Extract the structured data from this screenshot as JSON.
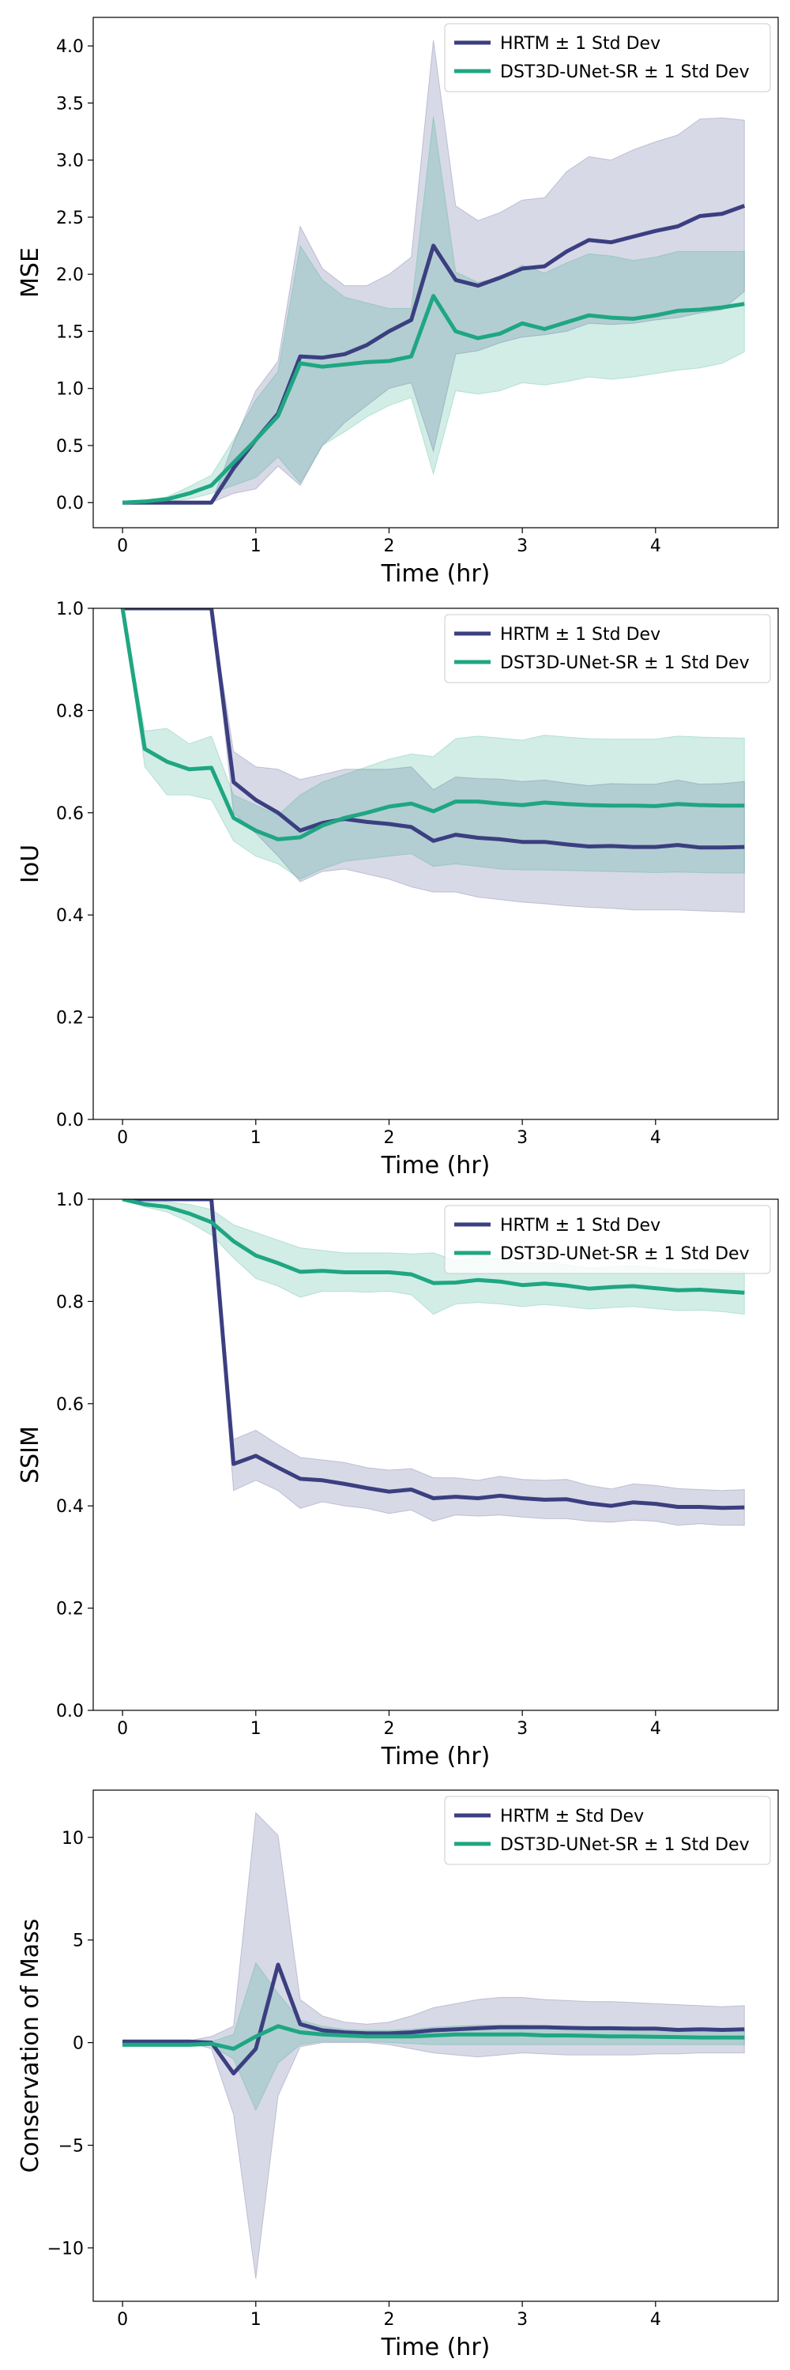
{
  "colors": {
    "hrtm": "#3b3f80",
    "dst": "#1fa682",
    "axis": "#000000"
  },
  "chart_data": [
    {
      "type": "line",
      "xlabel": "Time (hr)",
      "ylabel": "MSE",
      "xlim": [
        -0.22,
        4.92
      ],
      "ylim": [
        -0.22,
        4.25
      ],
      "xticks": [
        0,
        1,
        2,
        3,
        4
      ],
      "xtick_labels": [
        "0",
        "1",
        "2",
        "3",
        "4"
      ],
      "yticks": [
        0.0,
        0.5,
        1.0,
        1.5,
        2.0,
        2.5,
        3.0,
        3.5,
        4.0
      ],
      "ytick_labels": [
        "0.0",
        "0.5",
        "1.0",
        "1.5",
        "2.0",
        "2.5",
        "3.0",
        "3.5",
        "4.0"
      ],
      "legend_position": "top-right",
      "x": [
        0,
        0.167,
        0.333,
        0.5,
        0.667,
        0.833,
        1.0,
        1.167,
        1.333,
        1.5,
        1.667,
        1.833,
        2.0,
        2.167,
        2.333,
        2.5,
        2.667,
        2.833,
        3.0,
        3.167,
        3.333,
        3.5,
        3.667,
        3.833,
        4.0,
        4.167,
        4.333,
        4.5,
        4.667
      ],
      "series": [
        {
          "name": "HRTM ± 1 Std Dev",
          "color_key": "hrtm",
          "mean": [
            0,
            0,
            0,
            0,
            0,
            0.3,
            0.55,
            0.78,
            1.28,
            1.27,
            1.3,
            1.38,
            1.5,
            1.6,
            2.25,
            1.95,
            1.9,
            1.97,
            2.05,
            2.07,
            2.2,
            2.3,
            2.28,
            2.33,
            2.38,
            2.42,
            2.51,
            2.53,
            2.6
          ],
          "lower": [
            0,
            0,
            0,
            0,
            0,
            0.08,
            0.12,
            0.32,
            0.15,
            0.5,
            0.7,
            0.85,
            1.0,
            1.05,
            0.45,
            1.3,
            1.33,
            1.4,
            1.45,
            1.47,
            1.5,
            1.57,
            1.56,
            1.57,
            1.6,
            1.62,
            1.66,
            1.69,
            1.85
          ],
          "upper": [
            0,
            0,
            0,
            0,
            0,
            0.52,
            0.98,
            1.24,
            2.42,
            2.05,
            1.9,
            1.9,
            2.0,
            2.15,
            4.05,
            2.6,
            2.47,
            2.54,
            2.65,
            2.67,
            2.9,
            3.03,
            3.0,
            3.09,
            3.16,
            3.22,
            3.36,
            3.37,
            3.35
          ]
        },
        {
          "name": "DST3D-UNet-SR ± 1 Std Dev",
          "color_key": "dst",
          "mean": [
            0,
            0.01,
            0.03,
            0.08,
            0.15,
            0.35,
            0.55,
            0.76,
            1.22,
            1.19,
            1.21,
            1.23,
            1.24,
            1.28,
            1.81,
            1.5,
            1.44,
            1.48,
            1.57,
            1.52,
            1.58,
            1.64,
            1.62,
            1.61,
            1.64,
            1.68,
            1.69,
            1.71,
            1.74
          ],
          "lower": [
            0,
            0.005,
            0.01,
            0.03,
            0.08,
            0.15,
            0.22,
            0.4,
            0.17,
            0.5,
            0.62,
            0.75,
            0.85,
            0.92,
            0.25,
            0.98,
            0.95,
            0.98,
            1.05,
            1.03,
            1.06,
            1.1,
            1.08,
            1.1,
            1.13,
            1.16,
            1.18,
            1.22,
            1.32
          ],
          "upper": [
            0,
            0.02,
            0.05,
            0.14,
            0.24,
            0.55,
            0.9,
            1.15,
            2.25,
            1.95,
            1.8,
            1.75,
            1.7,
            1.7,
            3.38,
            2.02,
            1.93,
            1.97,
            2.08,
            2.01,
            2.1,
            2.18,
            2.16,
            2.12,
            2.15,
            2.2,
            2.2,
            2.2,
            2.2
          ]
        }
      ]
    },
    {
      "type": "line",
      "xlabel": "Time (hr)",
      "ylabel": "IoU",
      "xlim": [
        -0.22,
        4.92
      ],
      "ylim": [
        0.0,
        1.0
      ],
      "xticks": [
        0,
        1,
        2,
        3,
        4
      ],
      "xtick_labels": [
        "0",
        "1",
        "2",
        "3",
        "4"
      ],
      "yticks": [
        0.0,
        0.2,
        0.4,
        0.6,
        0.8,
        1.0
      ],
      "ytick_labels": [
        "0.0",
        "0.2",
        "0.4",
        "0.6",
        "0.8",
        "1.0"
      ],
      "legend_position": "top-right",
      "x": [
        0,
        0.167,
        0.333,
        0.5,
        0.667,
        0.833,
        1.0,
        1.167,
        1.333,
        1.5,
        1.667,
        1.833,
        2.0,
        2.167,
        2.333,
        2.5,
        2.667,
        2.833,
        3.0,
        3.167,
        3.333,
        3.5,
        3.667,
        3.833,
        4.0,
        4.167,
        4.333,
        4.5,
        4.667
      ],
      "series": [
        {
          "name": "HRTM ± 1 Std Dev",
          "color_key": "hrtm",
          "mean": [
            1.0,
            1.0,
            1.0,
            1.0,
            1.0,
            0.66,
            0.625,
            0.6,
            0.565,
            0.58,
            0.588,
            0.582,
            0.578,
            0.572,
            0.545,
            0.557,
            0.551,
            0.548,
            0.543,
            0.543,
            0.538,
            0.534,
            0.535,
            0.533,
            0.533,
            0.537,
            0.532,
            0.532,
            0.533
          ],
          "lower": [
            1.0,
            1.0,
            1.0,
            1.0,
            1.0,
            0.6,
            0.56,
            0.515,
            0.465,
            0.485,
            0.49,
            0.48,
            0.47,
            0.455,
            0.445,
            0.445,
            0.435,
            0.43,
            0.425,
            0.422,
            0.418,
            0.415,
            0.413,
            0.41,
            0.41,
            0.41,
            0.408,
            0.407,
            0.405
          ],
          "upper": [
            1.0,
            1.0,
            1.0,
            1.0,
            1.0,
            0.72,
            0.69,
            0.685,
            0.665,
            0.675,
            0.685,
            0.685,
            0.685,
            0.69,
            0.645,
            0.67,
            0.667,
            0.666,
            0.661,
            0.664,
            0.658,
            0.653,
            0.657,
            0.656,
            0.656,
            0.664,
            0.656,
            0.657,
            0.661
          ]
        },
        {
          "name": "DST3D-UNet-SR ± 1 Std Dev",
          "color_key": "dst",
          "mean": [
            1.0,
            0.725,
            0.7,
            0.685,
            0.688,
            0.59,
            0.565,
            0.548,
            0.552,
            0.575,
            0.59,
            0.6,
            0.612,
            0.618,
            0.603,
            0.622,
            0.622,
            0.618,
            0.615,
            0.62,
            0.617,
            0.615,
            0.614,
            0.614,
            0.613,
            0.617,
            0.615,
            0.614,
            0.614
          ],
          "lower": [
            1.0,
            0.69,
            0.635,
            0.635,
            0.625,
            0.545,
            0.515,
            0.5,
            0.47,
            0.49,
            0.505,
            0.51,
            0.515,
            0.52,
            0.495,
            0.5,
            0.495,
            0.49,
            0.488,
            0.488,
            0.487,
            0.486,
            0.485,
            0.484,
            0.483,
            0.484,
            0.483,
            0.482,
            0.482
          ],
          "upper": [
            1.0,
            0.76,
            0.765,
            0.735,
            0.75,
            0.635,
            0.615,
            0.595,
            0.635,
            0.66,
            0.675,
            0.69,
            0.705,
            0.715,
            0.71,
            0.745,
            0.75,
            0.746,
            0.742,
            0.752,
            0.748,
            0.745,
            0.744,
            0.744,
            0.744,
            0.75,
            0.748,
            0.747,
            0.746
          ]
        }
      ]
    },
    {
      "type": "line",
      "xlabel": "Time (hr)",
      "ylabel": "SSIM",
      "xlim": [
        -0.22,
        4.92
      ],
      "ylim": [
        0.0,
        1.0
      ],
      "xticks": [
        0,
        1,
        2,
        3,
        4
      ],
      "xtick_labels": [
        "0",
        "1",
        "2",
        "3",
        "4"
      ],
      "yticks": [
        0.0,
        0.2,
        0.4,
        0.6,
        0.8,
        1.0
      ],
      "ytick_labels": [
        "0.0",
        "0.2",
        "0.4",
        "0.6",
        "0.8",
        "1.0"
      ],
      "legend_position": "top-right",
      "x": [
        0,
        0.167,
        0.333,
        0.5,
        0.667,
        0.833,
        1.0,
        1.167,
        1.333,
        1.5,
        1.667,
        1.833,
        2.0,
        2.167,
        2.333,
        2.5,
        2.667,
        2.833,
        3.0,
        3.167,
        3.333,
        3.5,
        3.667,
        3.833,
        4.0,
        4.167,
        4.333,
        4.5,
        4.667
      ],
      "series": [
        {
          "name": "HRTM ± 1 Std Dev",
          "color_key": "hrtm",
          "mean": [
            1.0,
            1.0,
            1.0,
            1.0,
            1.0,
            0.482,
            0.498,
            0.475,
            0.453,
            0.45,
            0.443,
            0.435,
            0.428,
            0.432,
            0.415,
            0.418,
            0.415,
            0.42,
            0.415,
            0.412,
            0.413,
            0.405,
            0.4,
            0.407,
            0.404,
            0.398,
            0.398,
            0.396,
            0.397
          ],
          "lower": [
            1.0,
            1.0,
            1.0,
            1.0,
            1.0,
            0.43,
            0.45,
            0.43,
            0.395,
            0.408,
            0.4,
            0.395,
            0.385,
            0.392,
            0.37,
            0.382,
            0.38,
            0.382,
            0.378,
            0.375,
            0.375,
            0.37,
            0.368,
            0.372,
            0.37,
            0.362,
            0.365,
            0.362,
            0.362
          ],
          "upper": [
            1.0,
            1.0,
            1.0,
            1.0,
            1.0,
            0.53,
            0.548,
            0.52,
            0.495,
            0.49,
            0.485,
            0.475,
            0.47,
            0.473,
            0.455,
            0.455,
            0.45,
            0.458,
            0.452,
            0.45,
            0.452,
            0.44,
            0.433,
            0.443,
            0.44,
            0.434,
            0.432,
            0.43,
            0.432
          ]
        },
        {
          "name": "DST3D-UNet-SR ± 1 Std Dev",
          "color_key": "dst",
          "mean": [
            1.0,
            0.99,
            0.985,
            0.972,
            0.955,
            0.918,
            0.89,
            0.875,
            0.858,
            0.86,
            0.857,
            0.857,
            0.857,
            0.853,
            0.836,
            0.837,
            0.842,
            0.839,
            0.832,
            0.835,
            0.831,
            0.825,
            0.828,
            0.83,
            0.826,
            0.822,
            0.823,
            0.82,
            0.817
          ],
          "lower": [
            1.0,
            0.985,
            0.975,
            0.955,
            0.93,
            0.885,
            0.845,
            0.83,
            0.808,
            0.82,
            0.82,
            0.818,
            0.82,
            0.813,
            0.775,
            0.795,
            0.798,
            0.795,
            0.79,
            0.794,
            0.79,
            0.785,
            0.788,
            0.79,
            0.786,
            0.782,
            0.783,
            0.78,
            0.775
          ],
          "upper": [
            1.0,
            0.995,
            0.995,
            0.99,
            0.98,
            0.95,
            0.935,
            0.92,
            0.905,
            0.9,
            0.895,
            0.895,
            0.895,
            0.893,
            0.895,
            0.88,
            0.886,
            0.883,
            0.875,
            0.876,
            0.872,
            0.865,
            0.868,
            0.87,
            0.866,
            0.862,
            0.863,
            0.86,
            0.858
          ]
        }
      ]
    },
    {
      "type": "line",
      "xlabel": "Time (hr)",
      "ylabel": "Conservation of Mass",
      "xlim": [
        -0.22,
        4.92
      ],
      "ylim": [
        -12.6,
        12.3
      ],
      "xticks": [
        0,
        1,
        2,
        3,
        4
      ],
      "xtick_labels": [
        "0",
        "1",
        "2",
        "3",
        "4"
      ],
      "yticks": [
        -10,
        -5,
        0,
        5,
        10
      ],
      "ytick_labels": [
        "−10",
        "−5",
        "0",
        "5",
        "10"
      ],
      "legend_position": "top-right",
      "x": [
        0,
        0.167,
        0.333,
        0.5,
        0.667,
        0.833,
        1.0,
        1.167,
        1.333,
        1.5,
        1.667,
        1.833,
        2.0,
        2.167,
        2.333,
        2.5,
        2.667,
        2.833,
        3.0,
        3.167,
        3.333,
        3.5,
        3.667,
        3.833,
        4.0,
        4.167,
        4.333,
        4.5,
        4.667
      ],
      "series": [
        {
          "name": "HRTM ± Std Dev",
          "color_key": "hrtm",
          "mean": [
            0.05,
            0.05,
            0.05,
            0.05,
            0.0,
            -1.5,
            -0.3,
            3.8,
            0.9,
            0.6,
            0.5,
            0.45,
            0.45,
            0.5,
            0.6,
            0.65,
            0.7,
            0.75,
            0.75,
            0.75,
            0.72,
            0.7,
            0.7,
            0.68,
            0.68,
            0.62,
            0.65,
            0.62,
            0.65
          ],
          "lower": [
            0.0,
            0.0,
            0.0,
            0.0,
            -0.3,
            -3.5,
            -11.5,
            -2.6,
            -0.2,
            0.0,
            0.0,
            0.0,
            -0.1,
            -0.3,
            -0.5,
            -0.6,
            -0.7,
            -0.6,
            -0.5,
            -0.55,
            -0.6,
            -0.6,
            -0.6,
            -0.6,
            -0.55,
            -0.55,
            -0.5,
            -0.5,
            -0.5
          ],
          "upper": [
            0.1,
            0.1,
            0.1,
            0.1,
            0.3,
            0.8,
            11.2,
            10.1,
            2.1,
            1.3,
            1.0,
            0.9,
            1.0,
            1.3,
            1.7,
            1.9,
            2.1,
            2.2,
            2.2,
            2.1,
            2.05,
            2.0,
            2.0,
            1.95,
            1.9,
            1.85,
            1.8,
            1.75,
            1.8
          ]
        },
        {
          "name": "DST3D-UNet-SR ± 1 Std Dev",
          "color_key": "dst",
          "mean": [
            -0.1,
            -0.1,
            -0.1,
            -0.1,
            -0.05,
            -0.3,
            0.3,
            0.8,
            0.5,
            0.4,
            0.35,
            0.3,
            0.3,
            0.3,
            0.35,
            0.4,
            0.4,
            0.4,
            0.4,
            0.35,
            0.35,
            0.33,
            0.3,
            0.3,
            0.28,
            0.27,
            0.25,
            0.25,
            0.25
          ],
          "lower": [
            -0.2,
            -0.2,
            -0.2,
            -0.2,
            -0.15,
            -0.8,
            -3.3,
            -1.0,
            -0.1,
            0.05,
            0.05,
            0.05,
            0.0,
            -0.05,
            -0.1,
            -0.1,
            -0.1,
            -0.1,
            -0.1,
            -0.1,
            -0.1,
            -0.1,
            -0.1,
            -0.1,
            -0.1,
            -0.1,
            -0.1,
            -0.1,
            -0.1
          ],
          "upper": [
            0.0,
            0.0,
            0.0,
            0.0,
            0.05,
            0.4,
            3.9,
            2.4,
            1.1,
            0.8,
            0.65,
            0.6,
            0.6,
            0.65,
            0.75,
            0.8,
            0.85,
            0.85,
            0.85,
            0.8,
            0.78,
            0.75,
            0.72,
            0.7,
            0.68,
            0.65,
            0.62,
            0.6,
            0.6
          ]
        }
      ]
    }
  ]
}
